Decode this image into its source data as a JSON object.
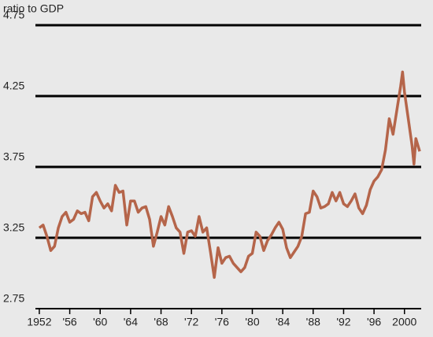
{
  "chart_data": {
    "type": "line",
    "y_label": "ratio to GDP",
    "x": [
      1952.0,
      1952.5,
      1953.0,
      1953.5,
      1954.0,
      1954.5,
      1955.0,
      1955.5,
      1956.0,
      1956.5,
      1957.0,
      1957.5,
      1958.0,
      1958.5,
      1959.0,
      1959.5,
      1960.0,
      1960.5,
      1961.0,
      1961.5,
      1962.0,
      1962.5,
      1963.0,
      1963.5,
      1964.0,
      1964.5,
      1965.0,
      1965.5,
      1966.0,
      1966.5,
      1967.0,
      1967.5,
      1968.0,
      1968.5,
      1969.0,
      1969.5,
      1970.0,
      1970.5,
      1971.0,
      1971.5,
      1972.0,
      1972.5,
      1973.0,
      1973.5,
      1974.0,
      1974.5,
      1975.0,
      1975.5,
      1976.0,
      1976.5,
      1977.0,
      1977.5,
      1978.0,
      1978.5,
      1979.0,
      1979.5,
      1980.0,
      1980.5,
      1981.0,
      1981.5,
      1982.0,
      1982.5,
      1983.0,
      1983.5,
      1984.0,
      1984.5,
      1985.0,
      1985.5,
      1986.0,
      1986.5,
      1987.0,
      1987.5,
      1988.0,
      1988.5,
      1989.0,
      1989.5,
      1990.0,
      1990.5,
      1991.0,
      1991.5,
      1992.0,
      1992.5,
      1993.0,
      1993.5,
      1994.0,
      1994.5,
      1995.0,
      1995.5,
      1996.0,
      1996.5,
      1997.0,
      1997.5,
      1998.0,
      1998.5,
      1999.0,
      1999.5,
      1999.75,
      2000.0,
      2000.5,
      2001.0,
      2001.25,
      2001.5,
      2002.0
    ],
    "series": [
      {
        "color": "#b5654a",
        "values": [
          3.32,
          3.34,
          3.26,
          3.16,
          3.19,
          3.32,
          3.4,
          3.43,
          3.36,
          3.38,
          3.44,
          3.42,
          3.43,
          3.37,
          3.54,
          3.57,
          3.51,
          3.46,
          3.49,
          3.44,
          3.62,
          3.57,
          3.58,
          3.34,
          3.51,
          3.51,
          3.43,
          3.46,
          3.47,
          3.38,
          3.19,
          3.29,
          3.4,
          3.34,
          3.47,
          3.4,
          3.32,
          3.29,
          3.14,
          3.29,
          3.3,
          3.26,
          3.4,
          3.29,
          3.32,
          3.15,
          2.97,
          3.18,
          3.07,
          3.11,
          3.12,
          3.07,
          3.04,
          3.01,
          3.04,
          3.12,
          3.14,
          3.29,
          3.26,
          3.16,
          3.23,
          3.27,
          3.32,
          3.36,
          3.31,
          3.18,
          3.11,
          3.15,
          3.19,
          3.26,
          3.42,
          3.43,
          3.58,
          3.54,
          3.46,
          3.47,
          3.49,
          3.57,
          3.51,
          3.57,
          3.49,
          3.47,
          3.51,
          3.56,
          3.46,
          3.42,
          3.48,
          3.59,
          3.65,
          3.68,
          3.73,
          3.87,
          4.09,
          3.98,
          4.15,
          4.32,
          4.42,
          4.28,
          4.09,
          3.9,
          3.77,
          3.95,
          3.86
        ]
      }
    ],
    "xlim": [
      1951.8,
      2002.2
    ],
    "xticks": [
      1952,
      {
        "value": 1956,
        "label": "'56"
      },
      {
        "value": 1960,
        "label": "'60"
      },
      {
        "value": 1964,
        "label": "'64"
      },
      {
        "value": 1968,
        "label": "'68"
      },
      {
        "value": 1972,
        "label": "'72"
      },
      {
        "value": 1976,
        "label": "'76"
      },
      {
        "value": 1980,
        "label": "'80"
      },
      {
        "value": 1984,
        "label": "'84"
      },
      {
        "value": 1988,
        "label": "'88"
      },
      {
        "value": 1992,
        "label": "'92"
      },
      {
        "value": 1996,
        "label": "'96"
      },
      2000
    ],
    "ylim": [
      2.75,
      4.75
    ],
    "yticks": [
      2.75,
      3.25,
      3.75,
      4.25,
      4.75
    ],
    "grid": true
  }
}
